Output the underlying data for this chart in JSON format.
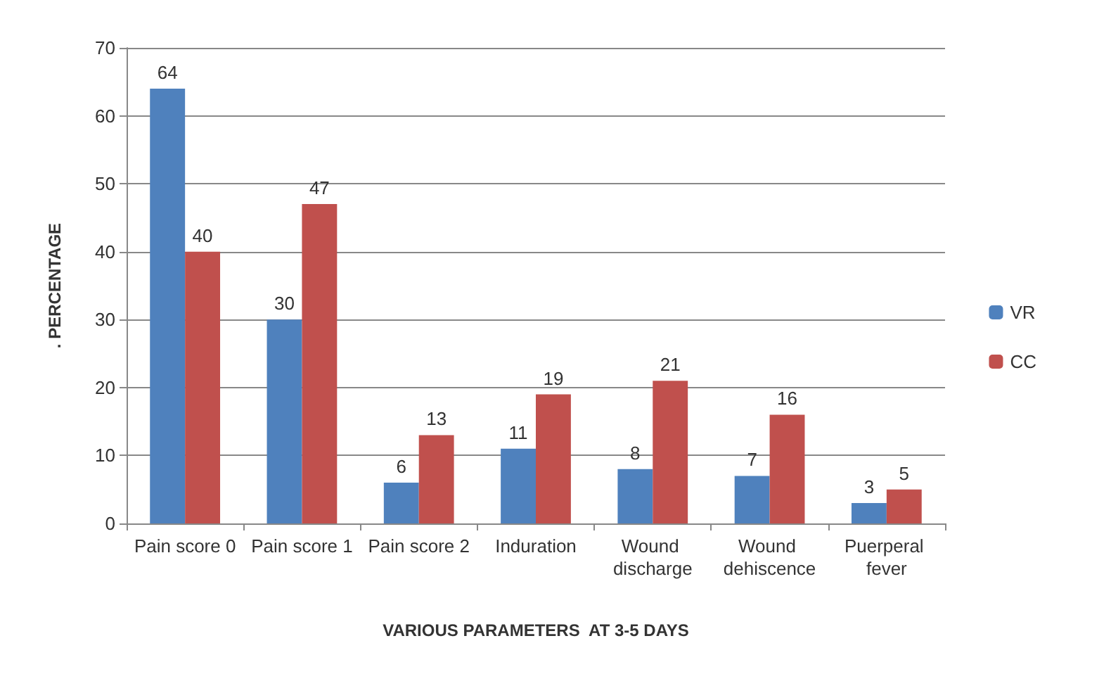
{
  "chart_data": {
    "type": "bar",
    "xlabel": "VARIOUS PARAMETERS  AT 3-5 DAYS",
    "ylabel": ". PERCENTAGE",
    "categories": [
      "Pain score 0",
      "Pain score 1",
      "Pain score 2",
      "Induration",
      "Wound discharge",
      "Wound dehiscence",
      "Puerperal fever"
    ],
    "series": [
      {
        "name": "VR",
        "color": "#4f81bd",
        "values": [
          64,
          30,
          6,
          11,
          8,
          7,
          3
        ]
      },
      {
        "name": "CC",
        "color": "#c0504d",
        "values": [
          40,
          47,
          13,
          19,
          21,
          16,
          5
        ]
      }
    ],
    "ylim": [
      0,
      70
    ],
    "yticks": [
      0,
      10,
      20,
      30,
      40,
      50,
      60,
      70
    ],
    "grid": "y",
    "legend": "right",
    "data_labels": true
  }
}
